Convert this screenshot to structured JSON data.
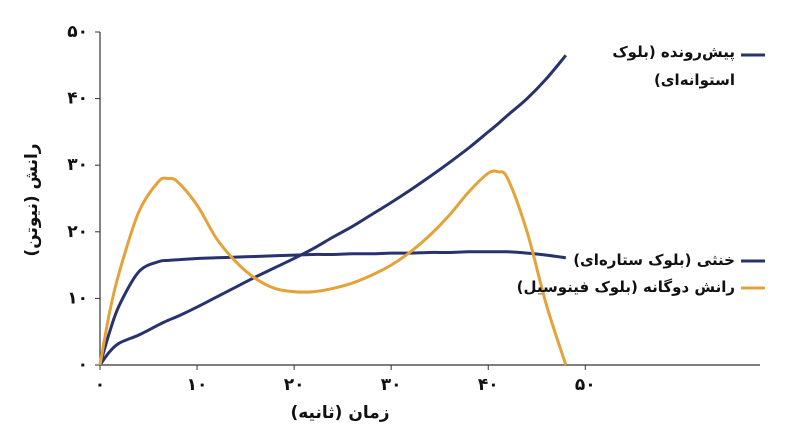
{
  "chart_data": {
    "type": "line",
    "x_label": "زمان (ثانیه)",
    "y_label": "رانش (نیوتن)",
    "x": [
      0,
      1,
      2,
      4,
      6,
      7,
      8,
      10,
      12,
      14,
      16,
      18,
      20,
      22,
      24,
      26,
      28,
      30,
      32,
      34,
      36,
      38,
      40,
      41,
      42,
      44,
      46,
      48
    ],
    "series": [
      {
        "name": "پیش‌رونده (بلوک استوانه‌ای)",
        "color": "#28336e",
        "values": [
          0,
          2,
          3.3,
          4.5,
          6,
          6.7,
          7.3,
          8.7,
          10.2,
          11.7,
          13.2,
          14.6,
          16,
          17.5,
          19.2,
          20.8,
          22.6,
          24.4,
          26.3,
          28.3,
          30.4,
          32.6,
          35,
          36.2,
          37.5,
          40,
          43,
          46.5
        ]
      },
      {
        "name": "خنثی (بلوک ستاره‌ای)",
        "color": "#28336e",
        "values": [
          0,
          5,
          9,
          14,
          15.5,
          15.7,
          15.8,
          16,
          16.1,
          16.2,
          16.3,
          16.4,
          16.5,
          16.6,
          16.6,
          16.7,
          16.7,
          16.8,
          16.8,
          16.9,
          16.9,
          17,
          17,
          17,
          17,
          16.8,
          16.5,
          16.1
        ]
      },
      {
        "name": "رانش دوگانه (بلوک فینوسیل)",
        "color": "#e3a33a",
        "values": [
          0,
          8,
          14,
          23,
          27.5,
          28,
          27.5,
          24,
          19,
          15.5,
          13,
          11.5,
          11,
          11,
          11.5,
          12.3,
          13.5,
          15,
          17,
          19.5,
          22.5,
          26,
          28.8,
          29,
          28,
          20,
          9,
          0
        ]
      }
    ],
    "xlim": [
      0,
      68
    ],
    "ylim": [
      0,
      50
    ],
    "xticks": [
      {
        "value": 0,
        "label": "۰"
      },
      {
        "value": 10,
        "label": "۱۰"
      },
      {
        "value": 20,
        "label": "۲۰"
      },
      {
        "value": 30,
        "label": "۳۰"
      },
      {
        "value": 40,
        "label": "۴۰"
      },
      {
        "value": 50,
        "label": "۵۰"
      }
    ],
    "yticks": [
      {
        "value": 0,
        "label": "۰"
      },
      {
        "value": 10,
        "label": "۱۰"
      },
      {
        "value": 20,
        "label": "۲۰"
      },
      {
        "value": 30,
        "label": "۳۰"
      },
      {
        "value": 40,
        "label": "۴۰"
      },
      {
        "value": 50,
        "label": "۵۰"
      }
    ],
    "grid": false
  }
}
